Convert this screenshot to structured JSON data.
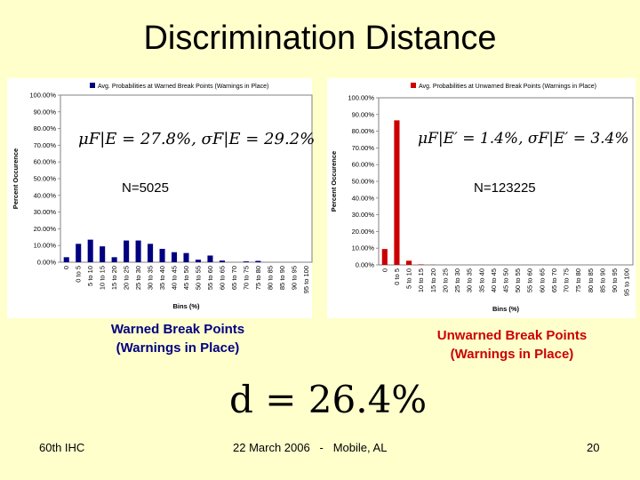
{
  "slide": {
    "title": "Discrimination Distance",
    "left_n": "N=5025",
    "right_n": "N=123225",
    "left_caption_line1": "Warned Break Points",
    "left_caption_line2": "(Warnings in Place)",
    "right_caption_line1": "Unwarned Break Points",
    "right_caption_line2": "(Warnings in Place)",
    "distance_formula": "d = 26.4%",
    "left_formula": "μF|E = 27.8%, σF|E = 29.2%",
    "right_formula": "μF|E′ = 1.4%, σF|E′ = 3.4%",
    "footer_left": "60th IHC",
    "footer_center": "22 March 2006   -   Mobile, AL",
    "footer_right": "20",
    "colors": {
      "background": "#ffffcc",
      "left_series": "#000080",
      "right_series": "#cc0000",
      "caption_left": "#000080",
      "caption_right": "#cc0000"
    }
  },
  "chart_data": [
    {
      "type": "bar",
      "legend": "Avg. Probabilities at Warned Break Points (Warnings in Place)",
      "legend_placement": "top",
      "xlabel": "Bins (%)",
      "ylabel": "Percent Occurence",
      "ylim": [
        0,
        100
      ],
      "yticks": [
        "0.00%",
        "10.00%",
        "20.00%",
        "30.00%",
        "40.00%",
        "50.00%",
        "60.00%",
        "70.00%",
        "80.00%",
        "90.00%",
        "100.00%"
      ],
      "categories": [
        "0",
        "0 to 5",
        "5 to 10",
        "10 to 15",
        "15 to 20",
        "20 to 25",
        "25 to 30",
        "30 to 35",
        "35 to 40",
        "40 to 45",
        "45 to 50",
        "50 to 55",
        "55 to 60",
        "60 to 65",
        "65 to 70",
        "70 to 75",
        "75 to 80",
        "80 to 85",
        "85 to 90",
        "90 to 95",
        "95 to 100"
      ],
      "values": [
        3.0,
        11.0,
        13.5,
        9.5,
        3.0,
        13.0,
        13.0,
        11.0,
        8.0,
        6.0,
        5.5,
        1.5,
        4.0,
        1.0,
        0,
        0.5,
        0.8,
        0,
        0,
        0,
        0
      ]
    },
    {
      "type": "bar",
      "legend": "Avg. Probabilities at Unwarned Break Points (Warnings in Place)",
      "legend_placement": "top",
      "xlabel": "Bins (%)",
      "ylabel": "Percent Occurence",
      "ylim": [
        0,
        100
      ],
      "yticks": [
        "0.00%",
        "10.00%",
        "20.00%",
        "30.00%",
        "40.00%",
        "50.00%",
        "60.00%",
        "70.00%",
        "80.00%",
        "90.00%",
        "100.00%"
      ],
      "categories": [
        "0",
        "0 to 5",
        "5 to 10",
        "10 to 15",
        "15 to 20",
        "20 to 25",
        "25 to 30",
        "30 to 35",
        "35 to 40",
        "40 to 45",
        "45 to 50",
        "50 to 55",
        "55 to 60",
        "60 to 65",
        "65 to 70",
        "70 to 75",
        "75 to 80",
        "80 to 85",
        "85 to 90",
        "90 to 95",
        "95 to 100"
      ],
      "values": [
        9.5,
        86.5,
        2.5,
        0.3,
        0.1,
        0,
        0,
        0,
        0,
        0,
        0,
        0,
        0,
        0,
        0,
        0,
        0,
        0,
        0,
        0,
        0
      ]
    }
  ]
}
